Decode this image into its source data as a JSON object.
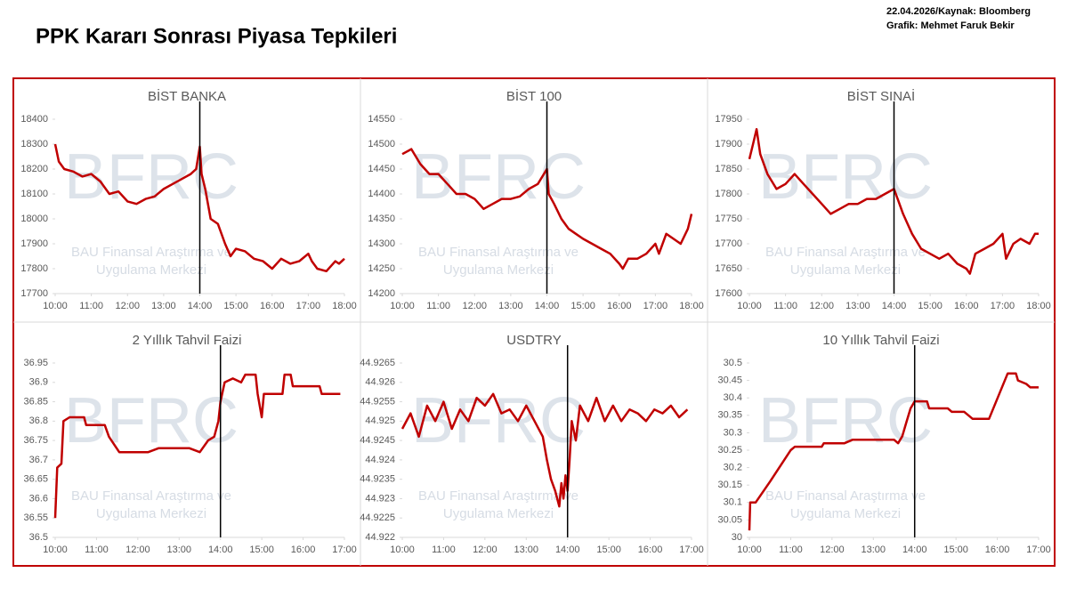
{
  "header": {
    "title": "PPK Kararı Sonrası Piyasa Tepkileri",
    "source": "22.04.2026/Kaynak: Bloomberg",
    "credit": "Grafik: Mehmet Faruk Bekir"
  },
  "watermark": {
    "logo": "BFRC",
    "line1": "BAU Finansal Araştırma ve",
    "line2": "Uygulama Merkezi"
  },
  "chart_data": [
    {
      "type": "line",
      "title": "BİST BANKA",
      "color": "#c00000",
      "event_line": 14,
      "x": [
        10,
        10.1,
        10.25,
        10.5,
        10.75,
        11,
        11.25,
        11.5,
        11.75,
        12,
        12.25,
        12.5,
        12.75,
        13,
        13.25,
        13.5,
        13.75,
        13.9,
        14,
        14.05,
        14.15,
        14.3,
        14.5,
        14.7,
        14.85,
        15,
        15.25,
        15.5,
        15.75,
        16,
        16.25,
        16.5,
        16.75,
        17,
        17.1,
        17.25,
        17.5,
        17.75,
        17.85,
        18
      ],
      "values": [
        18300,
        18230,
        18200,
        18190,
        18170,
        18180,
        18150,
        18100,
        18110,
        18070,
        18060,
        18080,
        18090,
        18120,
        18140,
        18160,
        18180,
        18200,
        18290,
        18180,
        18120,
        18000,
        17980,
        17900,
        17850,
        17880,
        17870,
        17840,
        17830,
        17800,
        17840,
        17820,
        17830,
        17860,
        17830,
        17800,
        17790,
        17830,
        17820,
        17840
      ],
      "xlim": [
        10,
        18
      ],
      "xticks": [
        {
          "value": 10,
          "label": "10:00"
        },
        {
          "value": 11,
          "label": "11:00"
        },
        {
          "value": 12,
          "label": "12:00"
        },
        {
          "value": 13,
          "label": "13:00"
        },
        {
          "value": 14,
          "label": "14:00"
        },
        {
          "value": 15,
          "label": "15:00"
        },
        {
          "value": 16,
          "label": "16:00"
        },
        {
          "value": 17,
          "label": "17:00"
        },
        {
          "value": 18,
          "label": "18:00"
        }
      ],
      "ylim": [
        17700,
        18400
      ],
      "yticks": [
        17700,
        17800,
        17900,
        18000,
        18100,
        18200,
        18300,
        18400
      ]
    },
    {
      "type": "line",
      "title": "BİST 100",
      "color": "#c00000",
      "event_line": 14,
      "x": [
        10,
        10.25,
        10.5,
        10.75,
        11,
        11.25,
        11.5,
        11.75,
        12,
        12.25,
        12.5,
        12.75,
        13,
        13.25,
        13.5,
        13.75,
        14,
        14.05,
        14.2,
        14.4,
        14.6,
        14.8,
        15,
        15.25,
        15.5,
        15.75,
        16,
        16.1,
        16.25,
        16.5,
        16.75,
        17,
        17.1,
        17.3,
        17.5,
        17.7,
        17.9,
        18
      ],
      "values": [
        14480,
        14490,
        14460,
        14440,
        14440,
        14420,
        14400,
        14400,
        14390,
        14370,
        14380,
        14390,
        14390,
        14395,
        14410,
        14420,
        14450,
        14400,
        14380,
        14350,
        14330,
        14320,
        14310,
        14300,
        14290,
        14280,
        14260,
        14250,
        14270,
        14270,
        14280,
        14300,
        14280,
        14320,
        14310,
        14300,
        14330,
        14360
      ],
      "xlim": [
        10,
        18
      ],
      "xticks": [
        {
          "value": 10,
          "label": "10:00"
        },
        {
          "value": 11,
          "label": "11:00"
        },
        {
          "value": 12,
          "label": "12:00"
        },
        {
          "value": 13,
          "label": "13:00"
        },
        {
          "value": 14,
          "label": "14:00"
        },
        {
          "value": 15,
          "label": "15:00"
        },
        {
          "value": 16,
          "label": "16:00"
        },
        {
          "value": 17,
          "label": "17:00"
        },
        {
          "value": 18,
          "label": "18:00"
        }
      ],
      "ylim": [
        14200,
        14550
      ],
      "yticks": [
        14200,
        14250,
        14300,
        14350,
        14400,
        14450,
        14500,
        14550
      ]
    },
    {
      "type": "line",
      "title": "BİST SINAİ",
      "color": "#c00000",
      "event_line": 14,
      "x": [
        10,
        10.1,
        10.2,
        10.3,
        10.5,
        10.75,
        11,
        11.25,
        11.5,
        11.75,
        12,
        12.25,
        12.5,
        12.75,
        13,
        13.25,
        13.5,
        13.75,
        14,
        14.1,
        14.25,
        14.5,
        14.75,
        15,
        15.25,
        15.5,
        15.75,
        16,
        16.1,
        16.25,
        16.5,
        16.75,
        17,
        17.1,
        17.3,
        17.5,
        17.75,
        17.9,
        18
      ],
      "values": [
        17870,
        17900,
        17930,
        17880,
        17840,
        17810,
        17820,
        17840,
        17820,
        17800,
        17780,
        17760,
        17770,
        17780,
        17780,
        17790,
        17790,
        17800,
        17810,
        17790,
        17760,
        17720,
        17690,
        17680,
        17670,
        17680,
        17660,
        17650,
        17640,
        17680,
        17690,
        17700,
        17720,
        17670,
        17700,
        17710,
        17700,
        17720,
        17720
      ],
      "xlim": [
        10,
        18
      ],
      "xticks": [
        {
          "value": 10,
          "label": "10:00"
        },
        {
          "value": 11,
          "label": "11:00"
        },
        {
          "value": 12,
          "label": "12:00"
        },
        {
          "value": 13,
          "label": "13:00"
        },
        {
          "value": 14,
          "label": "14:00"
        },
        {
          "value": 15,
          "label": "15:00"
        },
        {
          "value": 16,
          "label": "16:00"
        },
        {
          "value": 17,
          "label": "17:00"
        },
        {
          "value": 18,
          "label": "18:00"
        }
      ],
      "ylim": [
        17600,
        17950
      ],
      "yticks": [
        17600,
        17650,
        17700,
        17750,
        17800,
        17850,
        17900,
        17950
      ]
    },
    {
      "type": "line",
      "title": "2 Yıllık Tahvil Faizi",
      "color": "#c00000",
      "event_line": 14,
      "x": [
        10,
        10.05,
        10.15,
        10.2,
        10.35,
        10.7,
        10.75,
        11.2,
        11.3,
        11.55,
        12,
        12.25,
        12.5,
        13.25,
        13.5,
        13.7,
        13.85,
        13.95,
        14,
        14.1,
        14.3,
        14.5,
        14.6,
        14.85,
        14.9,
        15,
        15.05,
        15.5,
        15.55,
        15.7,
        15.75,
        16.4,
        16.45,
        16.9
      ],
      "values": [
        36.55,
        36.68,
        36.69,
        36.8,
        36.81,
        36.81,
        36.79,
        36.79,
        36.76,
        36.72,
        36.72,
        36.72,
        36.73,
        36.73,
        36.72,
        36.75,
        36.76,
        36.8,
        36.85,
        36.9,
        36.91,
        36.9,
        36.92,
        36.92,
        36.87,
        36.81,
        36.87,
        36.87,
        36.92,
        36.92,
        36.89,
        36.89,
        36.87,
        36.87
      ],
      "xlim": [
        10,
        17
      ],
      "xticks": [
        {
          "value": 10,
          "label": "10:00"
        },
        {
          "value": 11,
          "label": "11:00"
        },
        {
          "value": 12,
          "label": "12:00"
        },
        {
          "value": 13,
          "label": "13:00"
        },
        {
          "value": 14,
          "label": "14:00"
        },
        {
          "value": 15,
          "label": "15:00"
        },
        {
          "value": 16,
          "label": "16:00"
        },
        {
          "value": 17,
          "label": "17:00"
        }
      ],
      "ylim": [
        36.5,
        36.95
      ],
      "yticks": [
        36.5,
        36.55,
        36.6,
        36.65,
        36.7,
        36.75,
        36.8,
        36.85,
        36.9,
        36.95
      ]
    },
    {
      "type": "line",
      "title": "USDTRY",
      "color": "#c00000",
      "event_line": 14,
      "x": [
        10,
        10.2,
        10.4,
        10.6,
        10.8,
        11,
        11.2,
        11.4,
        11.6,
        11.8,
        12,
        12.2,
        12.4,
        12.6,
        12.8,
        13,
        13.2,
        13.4,
        13.5,
        13.6,
        13.7,
        13.8,
        13.85,
        13.9,
        13.95,
        14,
        14.05,
        14.1,
        14.2,
        14.3,
        14.5,
        14.7,
        14.9,
        15.1,
        15.3,
        15.5,
        15.7,
        15.9,
        16.1,
        16.3,
        16.5,
        16.7,
        16.9
      ],
      "values": [
        44.9248,
        44.9252,
        44.9246,
        44.9254,
        44.925,
        44.9255,
        44.9248,
        44.9253,
        44.925,
        44.9256,
        44.9254,
        44.9257,
        44.9252,
        44.9253,
        44.925,
        44.9254,
        44.925,
        44.9246,
        44.924,
        44.9235,
        44.9232,
        44.9228,
        44.9234,
        44.923,
        44.9236,
        44.9232,
        44.924,
        44.925,
        44.9245,
        44.9254,
        44.925,
        44.9256,
        44.925,
        44.9254,
        44.925,
        44.9253,
        44.9252,
        44.925,
        44.9253,
        44.9252,
        44.9254,
        44.9251,
        44.9253
      ],
      "xlim": [
        10,
        17
      ],
      "xticks": [
        {
          "value": 10,
          "label": "10:00"
        },
        {
          "value": 11,
          "label": "11:00"
        },
        {
          "value": 12,
          "label": "12:00"
        },
        {
          "value": 13,
          "label": "13:00"
        },
        {
          "value": 14,
          "label": "14:00"
        },
        {
          "value": 15,
          "label": "15:00"
        },
        {
          "value": 16,
          "label": "16:00"
        },
        {
          "value": 17,
          "label": "17:00"
        }
      ],
      "ylim": [
        44.922,
        44.9265
      ],
      "yticks": [
        44.922,
        44.9225,
        44.923,
        44.9235,
        44.924,
        44.9245,
        44.925,
        44.9255,
        44.926,
        44.9265
      ]
    },
    {
      "type": "line",
      "title": "10 Yıllık Tahvil Faizi",
      "color": "#c00000",
      "event_line": 14,
      "x": [
        10,
        10.02,
        10.15,
        10.5,
        11,
        11.1,
        11.5,
        11.75,
        11.8,
        12.3,
        12.5,
        13.5,
        13.6,
        13.7,
        13.8,
        13.9,
        14,
        14.3,
        14.35,
        14.8,
        14.9,
        15.2,
        15.3,
        15.4,
        15.8,
        16.25,
        16.45,
        16.5,
        16.7,
        16.8,
        17
      ],
      "values": [
        30.02,
        30.1,
        30.1,
        30.16,
        30.25,
        30.26,
        30.26,
        30.26,
        30.27,
        30.27,
        30.28,
        30.28,
        30.27,
        30.29,
        30.33,
        30.37,
        30.39,
        30.39,
        30.37,
        30.37,
        30.36,
        30.36,
        30.35,
        30.34,
        30.34,
        30.47,
        30.47,
        30.45,
        30.44,
        30.43,
        30.43
      ],
      "xlim": [
        10,
        17
      ],
      "xticks": [
        {
          "value": 10,
          "label": "10:00"
        },
        {
          "value": 11,
          "label": "11:00"
        },
        {
          "value": 12,
          "label": "12:00"
        },
        {
          "value": 13,
          "label": "13:00"
        },
        {
          "value": 14,
          "label": "14:00"
        },
        {
          "value": 15,
          "label": "15:00"
        },
        {
          "value": 16,
          "label": "16:00"
        },
        {
          "value": 17,
          "label": "17:00"
        }
      ],
      "ylim": [
        30,
        30.5
      ],
      "yticks": [
        30,
        30.05,
        30.1,
        30.15,
        30.2,
        30.25,
        30.3,
        30.35,
        30.4,
        30.45,
        30.5
      ]
    }
  ]
}
